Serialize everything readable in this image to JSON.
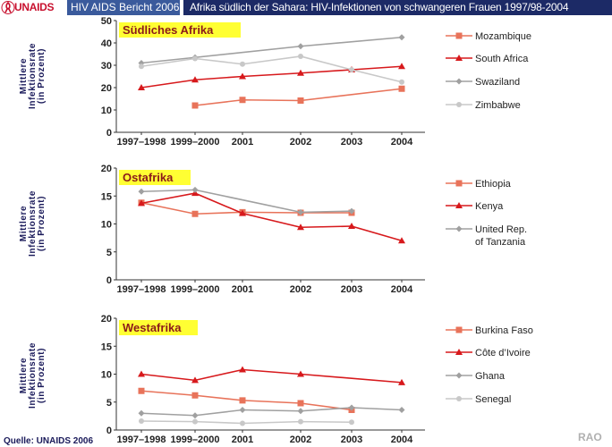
{
  "header": {
    "logo_text": "UNAIDS",
    "report_label": "HIV AIDS Bericht 2006",
    "title": "Afrika südlich der Sahara: HIV-Infektionen von schwangeren Frauen 1997/98-2004"
  },
  "footer": {
    "source": "Quelle: UNAIDS 2006",
    "watermark": "RAO"
  },
  "chart_data": [
    {
      "type": "line",
      "title": "Südliches Afrika",
      "ylabel": "Mittlere Infektionsrate (in Prozent)",
      "ylabel_lines": [
        "Mittlere",
        "Infektionsrate",
        "(in Prozent)"
      ],
      "categories": [
        "1997–1998",
        "1999–2000",
        "2001",
        "2002",
        "2003",
        "2004"
      ],
      "ylim": [
        0,
        50
      ],
      "yticks": [
        0,
        10,
        20,
        30,
        40,
        50
      ],
      "grid": false,
      "legend": "right",
      "series": [
        {
          "name": "Mozambique",
          "color": "#e8735a",
          "marker": "square",
          "values": [
            null,
            12,
            14.5,
            14.2,
            null,
            19.5
          ]
        },
        {
          "name": "South Africa",
          "color": "#d7191c",
          "marker": "triangle",
          "values": [
            20,
            23.5,
            25,
            26.5,
            28,
            29.5
          ]
        },
        {
          "name": "Swaziland",
          "color": "#a0a0a0",
          "marker": "diamond",
          "values": [
            31,
            33.5,
            null,
            38.5,
            null,
            42.5
          ]
        },
        {
          "name": "Zimbabwe",
          "color": "#c8c8c8",
          "marker": "circle",
          "values": [
            29.5,
            33,
            30.5,
            34,
            28,
            22.5
          ]
        }
      ]
    },
    {
      "type": "line",
      "title": "Ostafrika",
      "ylabel": "Mittlere Infektionsrate (in Prozent)",
      "ylabel_lines": [
        "Mittlere",
        "Infektionsrate",
        "(in Prozent)"
      ],
      "categories": [
        "1997–1998",
        "1999–2000",
        "2001",
        "2002",
        "2003",
        "2004"
      ],
      "ylim": [
        0,
        20
      ],
      "yticks": [
        0,
        5,
        10,
        15,
        20
      ],
      "grid": false,
      "legend": "right",
      "series": [
        {
          "name": "Ethiopia",
          "color": "#e8735a",
          "marker": "square",
          "values": [
            13.8,
            11.8,
            12.1,
            12.0,
            12.0,
            null
          ]
        },
        {
          "name": "Kenya",
          "color": "#d7191c",
          "marker": "triangle",
          "values": [
            13.7,
            15.5,
            11.9,
            9.4,
            9.6,
            7.0
          ]
        },
        {
          "name": "United Rep. of Tanzania",
          "color": "#a0a0a0",
          "marker": "diamond",
          "values": [
            15.8,
            16.1,
            null,
            12.1,
            12.3,
            null
          ]
        }
      ]
    },
    {
      "type": "line",
      "title": "Westafrika",
      "ylabel": "Mittlere Infektionsrate (in Prozent)",
      "ylabel_lines": [
        "Mittlere",
        "Infektionsrate",
        "(in Prozent)"
      ],
      "categories": [
        "1997–1998",
        "1999–2000",
        "2001",
        "2002",
        "2003",
        "2004"
      ],
      "ylim": [
        0,
        20
      ],
      "yticks": [
        0,
        5,
        10,
        15,
        20
      ],
      "grid": false,
      "legend": "right",
      "series": [
        {
          "name": "Burkina Faso",
          "color": "#e8735a",
          "marker": "square",
          "values": [
            7.0,
            6.2,
            5.3,
            4.8,
            3.6,
            null
          ]
        },
        {
          "name": "Côte d’Ivoire",
          "color": "#d7191c",
          "marker": "triangle",
          "values": [
            10.0,
            8.9,
            10.8,
            10.0,
            null,
            8.5
          ]
        },
        {
          "name": "Ghana",
          "color": "#a0a0a0",
          "marker": "diamond",
          "values": [
            3.0,
            2.6,
            3.6,
            3.4,
            4.0,
            3.6
          ]
        },
        {
          "name": "Senegal",
          "color": "#c8c8c8",
          "marker": "circle",
          "values": [
            1.6,
            1.5,
            1.2,
            1.5,
            1.4,
            null
          ]
        }
      ]
    }
  ]
}
